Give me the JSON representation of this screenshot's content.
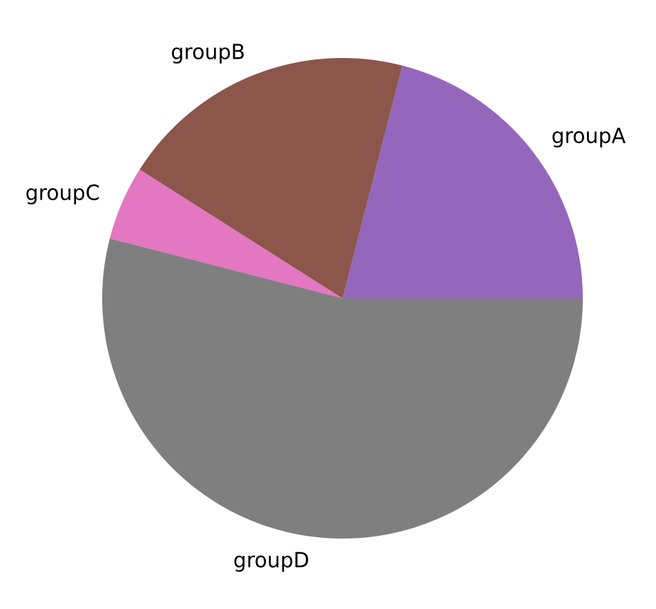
{
  "chart_data": {
    "type": "pie",
    "title": "",
    "categories": [
      "groupA",
      "groupB",
      "groupC",
      "groupD"
    ],
    "values": [
      21,
      20,
      5,
      54
    ],
    "colors": [
      "#9467bd",
      "#8c564b",
      "#e377c2",
      "#7f7f7f"
    ],
    "start_angle_deg": 0,
    "direction": "counterclockwise",
    "legend": "none",
    "labels_position": "outside"
  }
}
